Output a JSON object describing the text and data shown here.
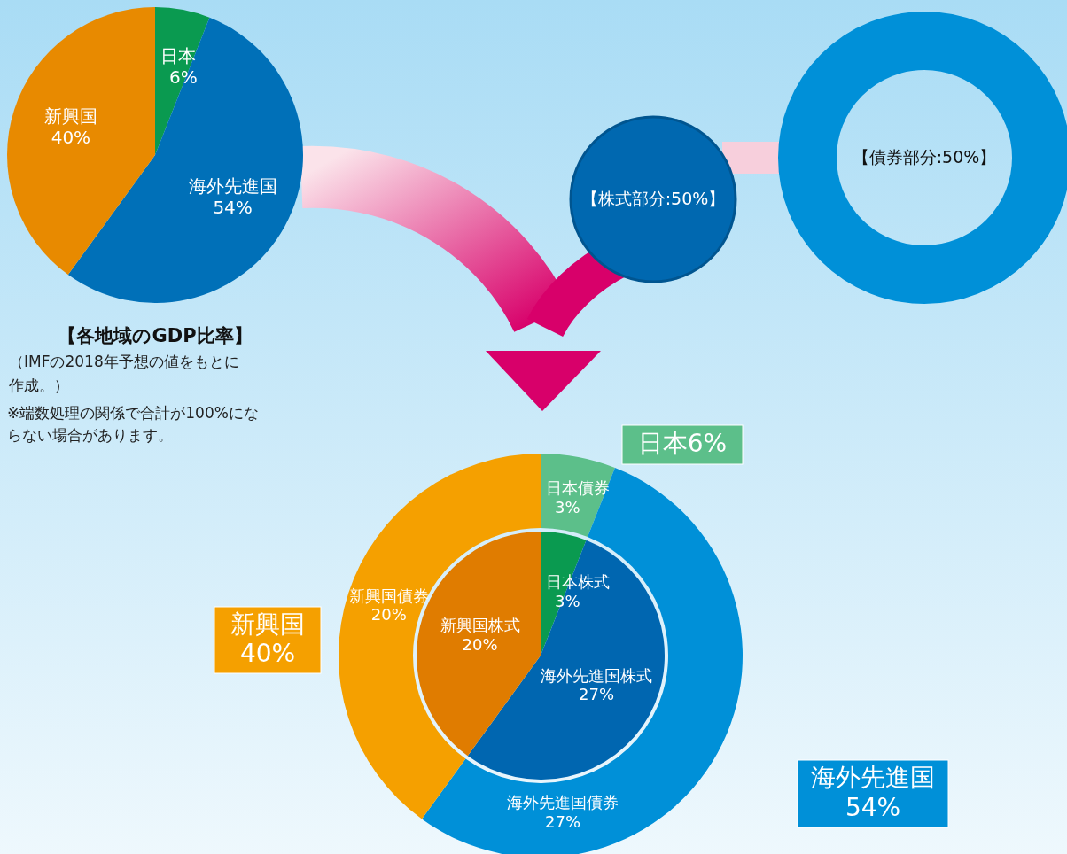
{
  "chart_data": [
    {
      "type": "pie",
      "title": "【各地域のGDP比率】",
      "categories": [
        "日本",
        "海外先進国",
        "新興国"
      ],
      "values": [
        6,
        54,
        40
      ],
      "value_labels": [
        "6%",
        "54%",
        "40%"
      ],
      "colors": [
        "#0a9a50",
        "#0070b8",
        "#e88a00"
      ],
      "annotations": [
        "（IMFの2018年予想の値をもとに作成。）",
        "※端数処理の関係で合計が100%にならない場合があります。"
      ]
    },
    {
      "type": "other",
      "annotations": [
        "【株式部分:50%】",
        "【債券部分:50%】"
      ]
    },
    {
      "type": "donut",
      "categories": [
        "日本債券",
        "海外先進国債券",
        "新興国債券"
      ],
      "values": [
        3,
        27,
        20
      ],
      "value_labels": [
        "3%",
        "27%",
        "20%"
      ],
      "colors": [
        "#5cbf8a",
        "#0090d8",
        "#f5a000"
      ],
      "annotations": [
        "日本6%",
        "新興国 40%",
        "海外先進国 54%"
      ]
    },
    {
      "type": "pie",
      "categories": [
        "日本株式",
        "海外先進国株式",
        "新興国株式"
      ],
      "values": [
        3,
        27,
        20
      ],
      "value_labels": [
        "3%",
        "27%",
        "20%"
      ],
      "colors": [
        "#0a9a50",
        "#0066b0",
        "#e07c00"
      ]
    }
  ]
}
